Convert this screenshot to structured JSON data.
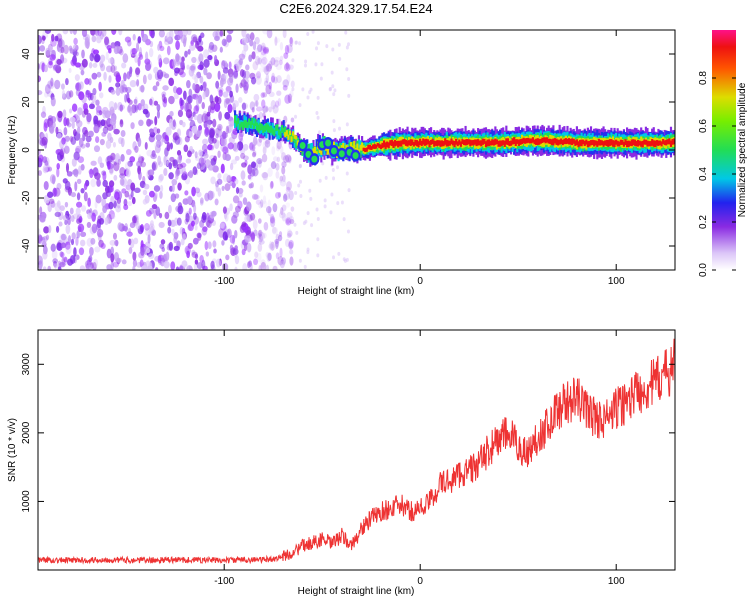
{
  "title": "C2E6.2024.329.17.54.E24",
  "chart_data": [
    {
      "type": "heatmap",
      "xlabel": "Height of straight line (km)",
      "ylabel": "Frequency (Hz)",
      "xlim": [
        -195,
        130
      ],
      "ylim": [
        -50,
        50
      ],
      "xticks": [
        -100,
        0,
        100
      ],
      "xtick_labels": [
        "-100",
        "0",
        "100"
      ],
      "yticks": [
        -40,
        -20,
        0,
        20,
        40
      ],
      "ytick_labels": [
        "-40",
        "-20",
        "0",
        "20",
        "40"
      ],
      "colorbar": {
        "label": "Normalized spectral amplitude",
        "range": [
          0,
          1
        ],
        "ticks": [
          0.0,
          0.2,
          0.4,
          0.6,
          0.8
        ],
        "tick_labels": [
          "0.0",
          "0.2",
          "0.4",
          "0.6",
          "0.8"
        ],
        "colormap": "white-violet-blue-cyan-green-yellow-red-magenta"
      },
      "ridge": {
        "x": [
          -95,
          -85,
          -80,
          -75,
          -70,
          -65,
          -60,
          -55,
          -50,
          -45,
          -40,
          -35,
          -30,
          -25,
          -20,
          -10,
          0,
          20,
          40,
          60,
          80,
          100,
          130
        ],
        "y": [
          12,
          10,
          9,
          8,
          8,
          5,
          0,
          -2,
          2,
          0,
          0,
          1,
          0,
          1,
          2,
          3,
          3,
          3,
          3,
          4,
          3,
          3,
          3
        ]
      },
      "noise_region": [
        -195,
        -65
      ]
    },
    {
      "type": "line",
      "xlabel": "Height of straight line (km)",
      "ylabel": "SNR (10 * v/v)",
      "xlim": [
        -195,
        130
      ],
      "ylim": [
        0,
        3500
      ],
      "xticks": [
        -100,
        0,
        100
      ],
      "xtick_labels": [
        "-100",
        "0",
        "100"
      ],
      "yticks": [
        1000,
        2000,
        3000
      ],
      "ytick_labels": [
        "1000",
        "2000",
        "3000"
      ],
      "color": "#ee3333",
      "series": [
        {
          "x": [
            -195,
            -180,
            -160,
            -140,
            -120,
            -100,
            -90,
            -80,
            -75,
            -70,
            -65,
            -60,
            -55,
            -50,
            -45,
            -40,
            -35,
            -30,
            -25,
            -20,
            -15,
            -10,
            -5,
            0,
            5,
            10,
            15,
            20,
            25,
            30,
            35,
            40,
            45,
            50,
            55,
            60,
            65,
            70,
            75,
            80,
            85,
            90,
            95,
            100,
            105,
            110,
            115,
            120,
            125,
            130
          ],
          "y": [
            150,
            140,
            150,
            140,
            150,
            140,
            150,
            150,
            160,
            200,
            250,
            350,
            400,
            450,
            380,
            500,
            350,
            600,
            750,
            850,
            900,
            950,
            850,
            900,
            1000,
            1250,
            1300,
            1400,
            1450,
            1550,
            1750,
            1900,
            2000,
            1800,
            1700,
            1950,
            2100,
            2350,
            2450,
            2500,
            2350,
            2200,
            2200,
            2350,
            2450,
            2600,
            2650,
            2750,
            2850,
            3000
          ]
        }
      ]
    }
  ]
}
